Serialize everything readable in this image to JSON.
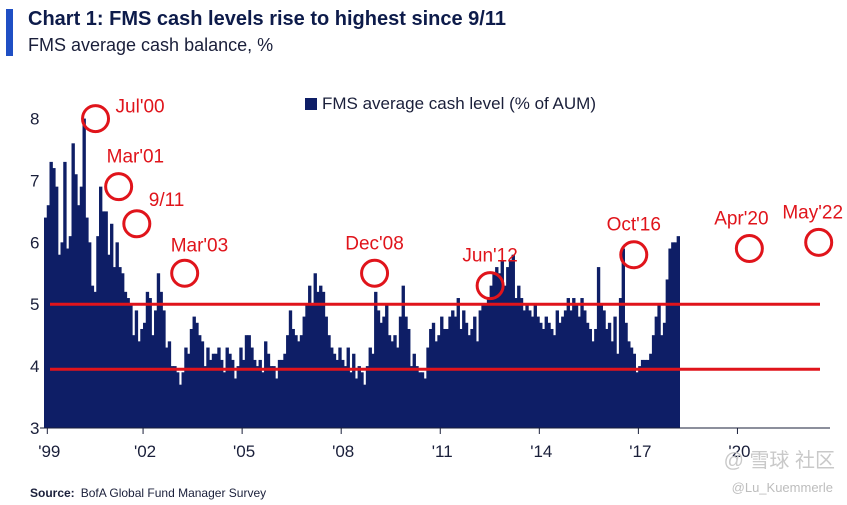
{
  "header": {
    "title": "Chart 1: FMS cash levels rise to highest since 9/11",
    "subtitle": "FMS average cash balance, %"
  },
  "source": {
    "label": "Source:",
    "text": "BofA Global Fund Manager Survey"
  },
  "watermark": "@ 雪球 社区",
  "handle": "@Lu_Kuemmerle",
  "colors": {
    "bar": "#0e1e66",
    "annotation": "#e0141b",
    "accent": "#1f4fc4"
  },
  "chart_data": {
    "type": "bar",
    "title": "Chart 1: FMS cash levels rise to highest since 9/11",
    "subtitle": "FMS average cash balance, %",
    "xlabel": "",
    "ylabel": "",
    "ylim": [
      3,
      8.3
    ],
    "xlim": [
      1999.0,
      2022.5
    ],
    "grid": false,
    "legend": {
      "label": "FMS average cash level (% of AUM)",
      "position": "top-center"
    },
    "y_ticks": [
      3,
      4,
      5,
      6,
      7,
      8
    ],
    "x_ticks": [
      {
        "label": "'99",
        "year": 1999.1
      },
      {
        "label": "'02",
        "year": 2002.0
      },
      {
        "label": "'05",
        "year": 2005.0
      },
      {
        "label": "'08",
        "year": 2008.0
      },
      {
        "label": "'11",
        "year": 2011.0
      },
      {
        "label": "'14",
        "year": 2014.0
      },
      {
        "label": "'17",
        "year": 2017.0
      },
      {
        "label": "'20",
        "year": 2020.0
      }
    ],
    "reference_lines": [
      5.0,
      3.95
    ],
    "series": [
      {
        "name": "FMS average cash level (% of AUM)",
        "start_year": 1999.0,
        "step_years": 0.0833,
        "values": [
          6.4,
          6.6,
          7.3,
          7.2,
          6.9,
          5.8,
          6.0,
          7.3,
          5.9,
          6.1,
          7.6,
          7.1,
          6.6,
          6.9,
          8.0,
          6.4,
          6.0,
          5.3,
          5.2,
          6.1,
          6.9,
          6.5,
          6.5,
          5.8,
          6.3,
          5.6,
          6.0,
          5.6,
          5.5,
          5.2,
          5.1,
          5.0,
          4.5,
          4.9,
          4.4,
          4.6,
          4.7,
          5.2,
          5.1,
          4.5,
          4.9,
          5.5,
          5.2,
          4.9,
          4.3,
          4.4,
          4.0,
          4.0,
          3.9,
          3.7,
          3.9,
          4.3,
          4.2,
          4.6,
          4.8,
          4.7,
          4.5,
          4.4,
          4.0,
          4.3,
          4.1,
          4.2,
          4.2,
          4.3,
          4.1,
          3.9,
          4.3,
          4.2,
          4.1,
          3.8,
          4.0,
          4.3,
          4.1,
          4.5,
          4.5,
          4.3,
          4.1,
          4.0,
          4.1,
          3.9,
          4.4,
          4.2,
          4.0,
          4.0,
          3.8,
          4.1,
          4.1,
          4.2,
          4.5,
          4.9,
          4.6,
          4.5,
          4.4,
          4.5,
          4.8,
          5.0,
          5.3,
          5.0,
          5.5,
          5.2,
          5.3,
          5.2,
          4.8,
          4.5,
          4.3,
          4.2,
          4.1,
          4.3,
          4.1,
          4.0,
          4.3,
          3.9,
          4.2,
          3.8,
          4.0,
          3.9,
          3.7,
          4.0,
          4.3,
          4.2,
          5.2,
          4.9,
          4.7,
          4.8,
          5.0,
          4.5,
          4.4,
          4.5,
          4.3,
          4.8,
          5.3,
          4.8,
          4.6,
          4.0,
          4.2,
          4.0,
          3.9,
          3.9,
          3.8,
          4.3,
          4.6,
          4.7,
          4.4,
          4.5,
          4.8,
          4.6,
          4.6,
          4.8,
          4.9,
          4.8,
          5.1,
          4.6,
          4.9,
          4.7,
          4.5,
          4.6,
          4.8,
          4.4,
          4.9,
          5.0,
          5.0,
          5.1,
          5.3,
          5.5,
          5.6,
          5.5,
          5.7,
          5.3,
          5.6,
          5.7,
          5.8,
          5.1,
          5.3,
          5.1,
          4.9,
          5.0,
          4.9,
          4.8,
          5.0,
          4.8,
          4.7,
          4.6,
          4.8,
          4.7,
          4.6,
          4.5,
          4.9,
          4.7,
          4.8,
          4.9,
          5.1,
          4.9,
          5.1,
          5.0,
          4.8,
          5.1,
          4.9,
          4.7,
          4.6,
          4.4,
          4.6,
          5.6,
          5.0,
          4.9,
          4.6,
          4.7,
          4.4,
          4.8,
          4.2,
          5.1,
          5.9,
          4.7,
          4.4,
          4.3,
          4.2,
          3.9,
          4.0,
          4.1,
          4.1,
          4.1,
          4.2,
          4.5,
          4.8,
          5.0,
          4.5,
          4.7,
          5.4,
          5.9,
          6.0,
          6.0,
          6.1
        ]
      }
    ],
    "annotations": [
      {
        "label": "Jul'00",
        "year": 2000.5,
        "value": 8.0
      },
      {
        "label": "Mar'01",
        "year": 2001.2,
        "value": 6.9
      },
      {
        "label": "9/11",
        "year": 2001.75,
        "value": 6.3
      },
      {
        "label": "Mar'03",
        "year": 2003.2,
        "value": 5.5
      },
      {
        "label": "Dec'08",
        "year": 2008.95,
        "value": 5.5
      },
      {
        "label": "Jun'12",
        "year": 2012.45,
        "value": 5.3
      },
      {
        "label": "Oct'16",
        "year": 2016.8,
        "value": 5.8
      },
      {
        "label": "Apr'20",
        "year": 2020.3,
        "value": 5.9
      },
      {
        "label": "May'22",
        "year": 2022.4,
        "value": 6.0
      }
    ]
  }
}
